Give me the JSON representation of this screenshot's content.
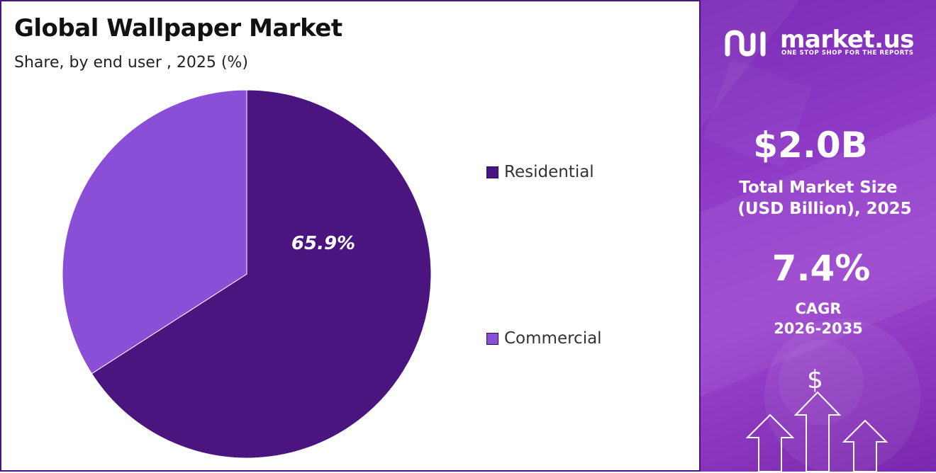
{
  "chart_data": {
    "type": "pie",
    "title": "Global Wallpaper Market",
    "subtitle": "Share, by end user , 2025 (%)",
    "categories": [
      "Residential",
      "Commercial"
    ],
    "values": [
      65.9,
      34.1
    ],
    "data_labels": [
      "65.9%",
      ""
    ],
    "colors": [
      "#4b1580",
      "#8a4fd6"
    ],
    "legend_placement": "right"
  },
  "brand": {
    "name": "market.us",
    "tagline": "ONE STOP SHOP FOR THE REPORTS"
  },
  "stats": {
    "market_size_value": "$2.0B",
    "market_size_label_line1": "Total Market Size",
    "market_size_label_line2": "(USD Billion), 2025",
    "cagr_value": "7.4%",
    "cagr_label_line1": "CAGR",
    "cagr_label_line2": "2026-2035"
  },
  "icons": {
    "dollar_symbol": "$",
    "arrows": "up-arrow-icon"
  },
  "colors": {
    "accent_dark": "#4b1580",
    "accent_light": "#8a4fd6",
    "panel_background": "#8f3bc8"
  }
}
